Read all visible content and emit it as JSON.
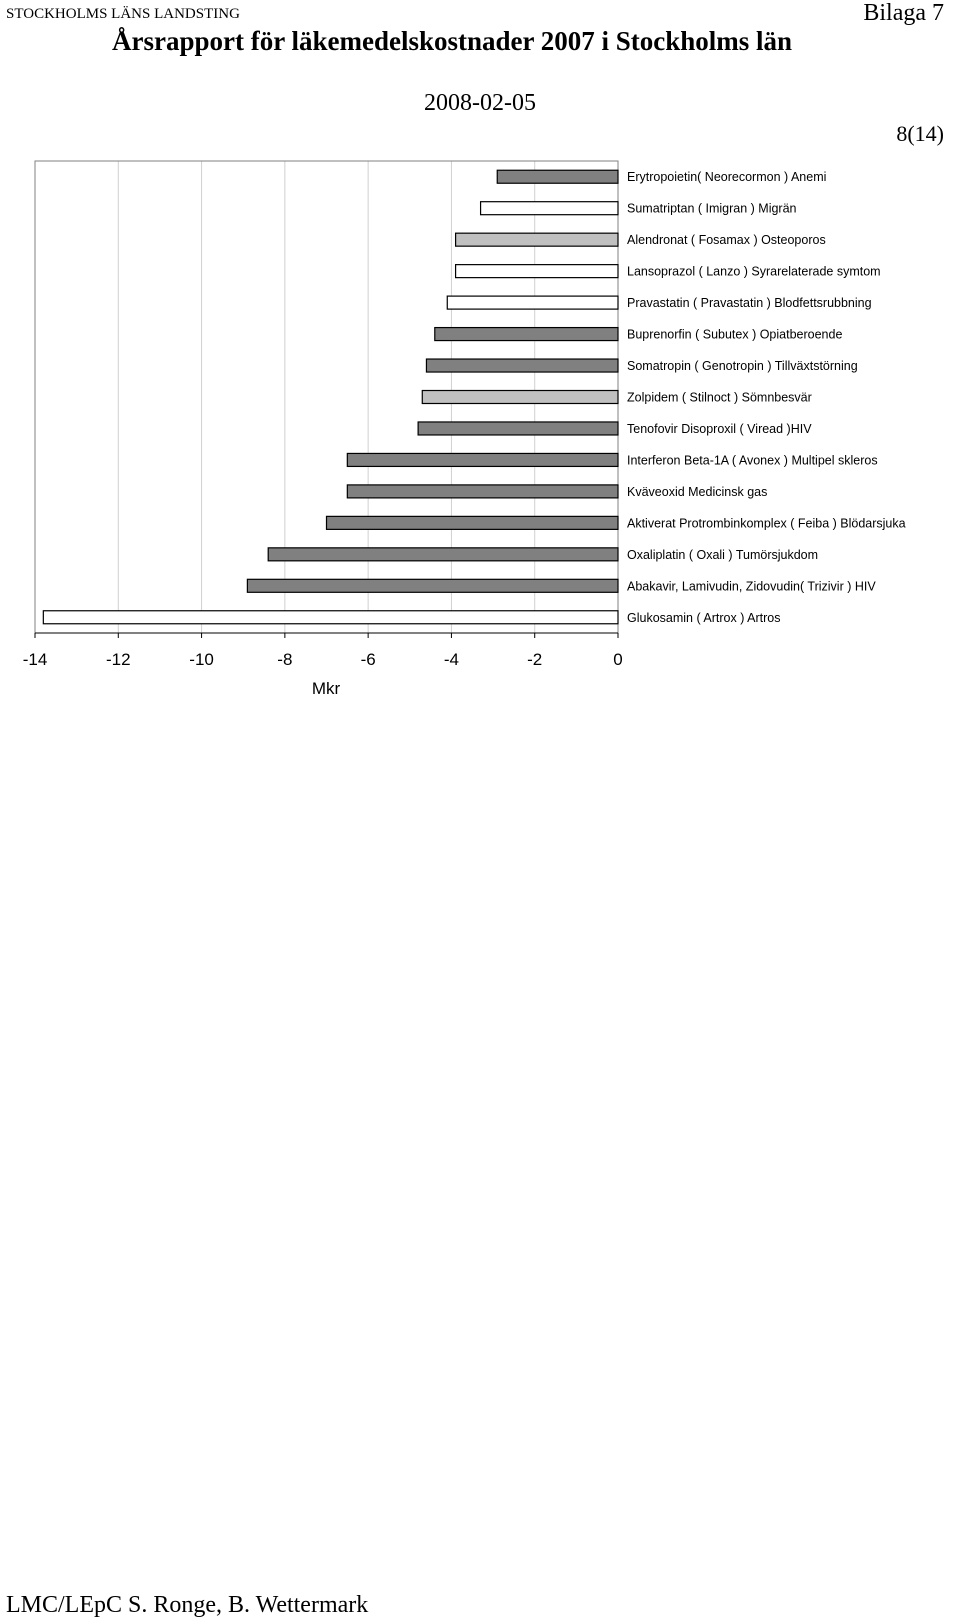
{
  "header": {
    "organization": "STOCKHOLMS LÄNS LANDSTING",
    "annex": "Bilaga 7",
    "title": "Årsrapport för läkemedelskostnader 2007 i Stockholms län",
    "date": "2008-02-05",
    "page": "8(14)"
  },
  "footer": {
    "authors": "LMC/LEpC S. Ronge, B. Wettermark"
  },
  "colors": {
    "dark": "#808080",
    "light": "#c0c0c0",
    "white": "#ffffff",
    "outline": "#000000",
    "grid": "#d0d0d0"
  },
  "chart_data": {
    "type": "bar",
    "orientation": "horizontal",
    "categories": [
      "Erytropoietin( Neorecormon ) Anemi",
      "Sumatriptan ( Imigran ) Migrän",
      "Alendronat ( Fosamax ) Osteoporos",
      "Lansoprazol ( Lanzo ) Syrarelaterade symtom",
      "Pravastatin ( Pravastatin  ) Blodfettsrubbning",
      "Buprenorfin ( Subutex ) Opiatberoende",
      "Somatropin ( Genotropin ) Tillväxtstörning",
      "Zolpidem ( Stilnoct ) Sömnbesvär",
      "Tenofovir Disoproxil  ( Viread )HIV",
      "Interferon Beta-1A ( Avonex )  Multipel skleros",
      "Kväveoxid  Medicinsk gas",
      "Aktiverat Protrombinkomplex ( Feiba ) Blödarsjuka",
      "Oxaliplatin ( Oxali ) Tumörsjukdom",
      "Abakavir, Lamivudin, Zidovudin( Trizivir ) HIV",
      "Glukosamin ( Artrox  )  Artros"
    ],
    "values": [
      -2.9,
      -3.3,
      -3.9,
      -3.9,
      -4.1,
      -4.4,
      -4.6,
      -4.7,
      -4.8,
      -6.5,
      -6.5,
      -7.0,
      -8.4,
      -8.9,
      -13.8
    ],
    "bar_colors": [
      "dark",
      "white",
      "light",
      "white",
      "white",
      "dark",
      "dark",
      "light",
      "dark",
      "dark",
      "dark",
      "dark",
      "dark",
      "dark",
      "white"
    ],
    "xlabel": "Mkr",
    "xlim": [
      -14,
      0
    ],
    "xticks": [
      "-14",
      "-12",
      "-10",
      "-8",
      "-6",
      "-4",
      "-2",
      "0"
    ],
    "grid": "vertical"
  }
}
